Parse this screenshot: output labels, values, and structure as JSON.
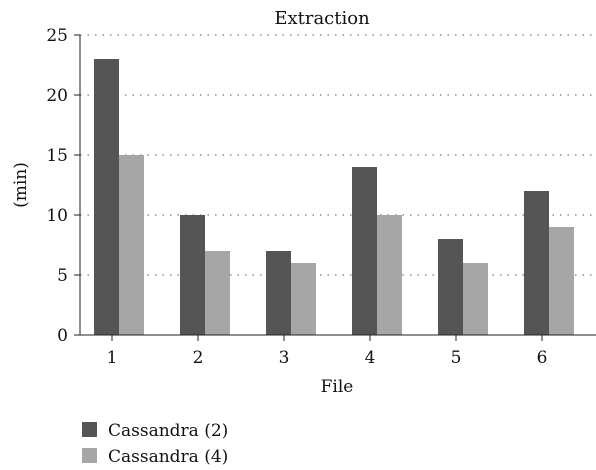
{
  "chart_data": {
    "type": "bar",
    "title": "Extraction",
    "xlabel": "File",
    "ylabel": "(min)",
    "categories": [
      "1",
      "2",
      "3",
      "4",
      "5",
      "6"
    ],
    "series": [
      {
        "name": "Cassandra (2)",
        "color": "#555555",
        "values": [
          23,
          10,
          7,
          14,
          8,
          12
        ]
      },
      {
        "name": "Cassandra (4)",
        "color": "#a6a6a6",
        "values": [
          15,
          7,
          6,
          10,
          6,
          9
        ]
      }
    ],
    "ylim": [
      0,
      25
    ],
    "yticks": [
      0,
      5,
      10,
      15,
      20,
      25
    ],
    "grid": true,
    "legend_position": "bottom-left"
  }
}
